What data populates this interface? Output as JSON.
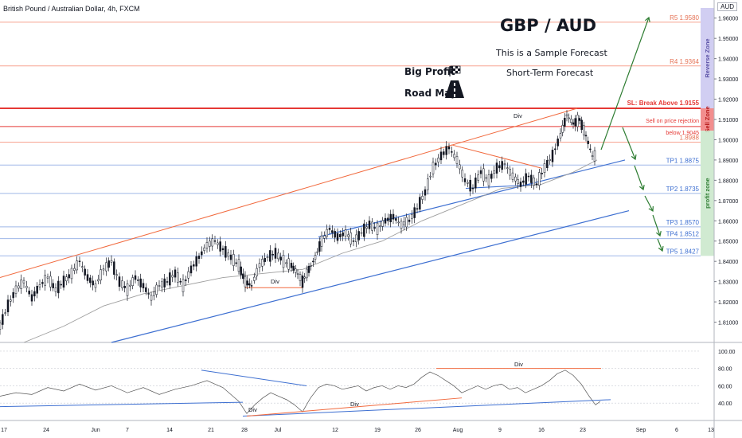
{
  "header": {
    "symbol": "British Pound / Australian Dollar, 4h, FXCM",
    "currency": "AUD"
  },
  "title": "GBP / AUD",
  "subtitle": "This is a Sample Forecast",
  "subtitle2": "Short-Term Forecast",
  "big_profit": "Big Profit",
  "road_map": "Road Map",
  "chart_data": {
    "type": "line",
    "price_axis": {
      "min": 1.8,
      "max": 1.965,
      "ticks": [
        "1.81000",
        "1.82000",
        "1.83000",
        "1.84000",
        "1.85000",
        "1.86000",
        "1.87000",
        "1.88000",
        "1.89000",
        "1.90000",
        "1.91000",
        "1.92000",
        "1.93000",
        "1.94000",
        "1.95000",
        "1.96000"
      ]
    },
    "rsi_axis": {
      "min": 20,
      "max": 110,
      "ticks": [
        "40.00",
        "60.00",
        "80.00",
        "100.00"
      ]
    },
    "x_labels": [
      "17",
      "24",
      "Jun",
      "7",
      "14",
      "21",
      "28",
      "Jul",
      "12",
      "19",
      "26",
      "Aug",
      "9",
      "16",
      "23",
      "Sep",
      "6",
      "13"
    ],
    "levels": [
      {
        "label": "R5 1.9580",
        "value": 1.958,
        "color": "#f7a491"
      },
      {
        "label": "R4 1.9364",
        "value": 1.9364,
        "color": "#f7a491"
      },
      {
        "label": "SL: Break Above 1.9155",
        "value": 1.9155,
        "color": "#e53935"
      },
      {
        "label": "Sell on price rejection",
        "value": 1.9065,
        "color": "#e53935"
      },
      {
        "label": "below 1.9045",
        "value": 1.9045,
        "color": "#e53935"
      },
      {
        "label": "1.8988",
        "value": 1.8988,
        "color": "#f7a491"
      },
      {
        "label": "TP1 1.8875",
        "value": 1.8875,
        "color": "#9fb7e8"
      },
      {
        "label": "TP2 1.8735",
        "value": 1.8735,
        "color": "#9fb7e8"
      },
      {
        "label": "TP3 1.8570",
        "value": 1.857,
        "color": "#9fb7e8"
      },
      {
        "label": "TP4 1.8512",
        "value": 1.8512,
        "color": "#9fb7e8"
      },
      {
        "label": "TP5 1.8427",
        "value": 1.8427,
        "color": "#9fb7e8"
      }
    ],
    "zones": [
      {
        "label": "Reverse Zone",
        "from": 1.9155,
        "to": 1.965,
        "color": "#c9c5f0"
      },
      {
        "label": "Sell Zone",
        "from": 1.9045,
        "to": 1.9155,
        "color": "#f07a7a"
      },
      {
        "label": "profit zone",
        "from": 1.8427,
        "to": 1.9045,
        "color": "#c8e6c9"
      }
    ],
    "annotations": [
      "Div",
      "Div",
      "Div",
      "Div",
      "Div"
    ],
    "close_path": [
      [
        0,
        1.808
      ],
      [
        10,
        1.818
      ],
      [
        20,
        1.826
      ],
      [
        30,
        1.83
      ],
      [
        40,
        1.822
      ],
      [
        50,
        1.828
      ],
      [
        60,
        1.832
      ],
      [
        70,
        1.826
      ],
      [
        80,
        1.83
      ],
      [
        90,
        1.834
      ],
      [
        100,
        1.84
      ],
      [
        110,
        1.832
      ],
      [
        120,
        1.828
      ],
      [
        130,
        1.836
      ],
      [
        140,
        1.84
      ],
      [
        150,
        1.83
      ],
      [
        160,
        1.826
      ],
      [
        170,
        1.832
      ],
      [
        180,
        1.828
      ],
      [
        190,
        1.822
      ],
      [
        200,
        1.828
      ],
      [
        210,
        1.83
      ],
      [
        220,
        1.834
      ],
      [
        230,
        1.828
      ],
      [
        240,
        1.836
      ],
      [
        250,
        1.842
      ],
      [
        260,
        1.848
      ],
      [
        270,
        1.85
      ],
      [
        280,
        1.846
      ],
      [
        290,
        1.842
      ],
      [
        300,
        1.838
      ],
      [
        308,
        1.83
      ],
      [
        316,
        1.828
      ],
      [
        326,
        1.838
      ],
      [
        336,
        1.842
      ],
      [
        346,
        1.844
      ],
      [
        356,
        1.84
      ],
      [
        366,
        1.838
      ],
      [
        374,
        1.834
      ],
      [
        380,
        1.83
      ],
      [
        388,
        1.836
      ],
      [
        396,
        1.842
      ],
      [
        404,
        1.85
      ],
      [
        414,
        1.856
      ],
      [
        424,
        1.852
      ],
      [
        434,
        1.854
      ],
      [
        444,
        1.85
      ],
      [
        454,
        1.854
      ],
      [
        464,
        1.858
      ],
      [
        474,
        1.856
      ],
      [
        484,
        1.86
      ],
      [
        494,
        1.862
      ],
      [
        504,
        1.858
      ],
      [
        514,
        1.86
      ],
      [
        524,
        1.866
      ],
      [
        534,
        1.874
      ],
      [
        544,
        1.886
      ],
      [
        554,
        1.892
      ],
      [
        564,
        1.896
      ],
      [
        574,
        1.89
      ],
      [
        584,
        1.88
      ],
      [
        594,
        1.876
      ],
      [
        604,
        1.884
      ],
      [
        614,
        1.88
      ],
      [
        624,
        1.886
      ],
      [
        634,
        1.888
      ],
      [
        644,
        1.882
      ],
      [
        654,
        1.878
      ],
      [
        664,
        1.882
      ],
      [
        674,
        1.878
      ],
      [
        684,
        1.886
      ],
      [
        694,
        1.892
      ],
      [
        704,
        1.902
      ],
      [
        712,
        1.912
      ],
      [
        720,
        1.908
      ],
      [
        728,
        1.91
      ],
      [
        736,
        1.902
      ],
      [
        744,
        1.892
      ],
      [
        750,
        1.892
      ]
    ],
    "ma_path": [
      [
        30,
        1.8
      ],
      [
        80,
        1.808
      ],
      [
        130,
        1.818
      ],
      [
        180,
        1.824
      ],
      [
        230,
        1.828
      ],
      [
        280,
        1.832
      ],
      [
        330,
        1.834
      ],
      [
        380,
        1.836
      ],
      [
        430,
        1.844
      ],
      [
        480,
        1.85
      ],
      [
        530,
        1.86
      ],
      [
        580,
        1.868
      ],
      [
        630,
        1.876
      ],
      [
        680,
        1.878
      ],
      [
        720,
        1.884
      ],
      [
        750,
        1.89
      ]
    ],
    "rsi_path": [
      [
        0,
        48
      ],
      [
        20,
        52
      ],
      [
        40,
        50
      ],
      [
        60,
        58
      ],
      [
        80,
        54
      ],
      [
        100,
        62
      ],
      [
        120,
        55
      ],
      [
        140,
        60
      ],
      [
        160,
        52
      ],
      [
        180,
        58
      ],
      [
        200,
        50
      ],
      [
        220,
        56
      ],
      [
        240,
        60
      ],
      [
        260,
        66
      ],
      [
        270,
        62
      ],
      [
        280,
        58
      ],
      [
        290,
        50
      ],
      [
        300,
        42
      ],
      [
        310,
        28
      ],
      [
        320,
        38
      ],
      [
        330,
        46
      ],
      [
        340,
        52
      ],
      [
        350,
        48
      ],
      [
        360,
        44
      ],
      [
        370,
        38
      ],
      [
        380,
        30
      ],
      [
        390,
        46
      ],
      [
        400,
        58
      ],
      [
        410,
        62
      ],
      [
        420,
        60
      ],
      [
        430,
        56
      ],
      [
        440,
        58
      ],
      [
        450,
        60
      ],
      [
        460,
        54
      ],
      [
        470,
        58
      ],
      [
        480,
        60
      ],
      [
        490,
        56
      ],
      [
        500,
        60
      ],
      [
        510,
        58
      ],
      [
        520,
        62
      ],
      [
        530,
        70
      ],
      [
        540,
        76
      ],
      [
        550,
        72
      ],
      [
        560,
        66
      ],
      [
        570,
        60
      ],
      [
        580,
        52
      ],
      [
        590,
        56
      ],
      [
        600,
        60
      ],
      [
        610,
        56
      ],
      [
        620,
        60
      ],
      [
        630,
        62
      ],
      [
        640,
        56
      ],
      [
        650,
        58
      ],
      [
        660,
        52
      ],
      [
        670,
        56
      ],
      [
        680,
        60
      ],
      [
        690,
        66
      ],
      [
        700,
        74
      ],
      [
        710,
        78
      ],
      [
        720,
        72
      ],
      [
        730,
        62
      ],
      [
        740,
        48
      ],
      [
        748,
        38
      ],
      [
        754,
        42
      ]
    ]
  }
}
